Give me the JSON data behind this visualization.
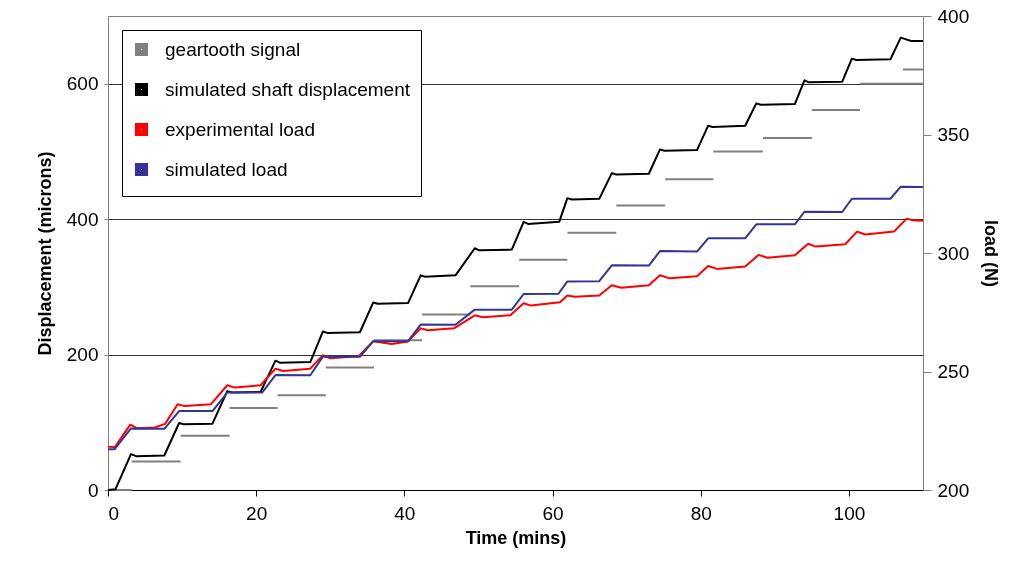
{
  "chart_data": {
    "type": "line",
    "xlabel": "Time (mins)",
    "ylabel": "Displacement (microns)",
    "y2label": "load (N)",
    "xlim": [
      0,
      110
    ],
    "xticks": [
      0,
      20,
      40,
      60,
      80,
      100
    ],
    "ylim": [
      0,
      700
    ],
    "yticks": [
      0,
      200,
      400,
      600
    ],
    "y2lim": [
      200,
      400
    ],
    "y2ticks": [
      200,
      250,
      300,
      350,
      400
    ],
    "grid": "y",
    "legend": "top left",
    "series": [
      {
        "name": "geartooth signal",
        "color": "#808080",
        "x": [
          0,
          3.2,
          null,
          3.2,
          9.8,
          null,
          9.8,
          16.4,
          null,
          16.4,
          22.9,
          null,
          22.9,
          29.4,
          null,
          29.4,
          35.9,
          null,
          35.9,
          42.4,
          null,
          42.4,
          48.9,
          null,
          48.9,
          55.5,
          null,
          55.5,
          62.0,
          null,
          62.0,
          68.6,
          null,
          68.6,
          75.2,
          null,
          75.2,
          81.7,
          null,
          81.7,
          88.4,
          null,
          88.4,
          95.0,
          null,
          95.0,
          101.5,
          null,
          101.5,
          110,
          null,
          107.3,
          110
        ],
        "values": [
          0,
          0,
          null,
          42,
          42,
          null,
          80,
          80,
          null,
          121,
          121,
          null,
          140,
          140,
          null,
          181,
          181,
          null,
          221,
          221,
          null,
          259,
          259,
          null,
          301,
          301,
          null,
          340,
          340,
          null,
          380,
          380,
          null,
          420,
          420,
          null,
          459,
          459,
          null,
          500,
          500,
          null,
          520,
          520,
          null,
          561,
          561,
          null,
          600,
          600,
          null,
          621,
          621
        ]
      },
      {
        "name": "simulated shaft displacement",
        "color": "#000000",
        "x": [
          0,
          1,
          3.1,
          3.8,
          7.6,
          9.6,
          10.2,
          14.1,
          16.1,
          16.7,
          20.6,
          22.6,
          23.2,
          27.3,
          29.0,
          29.6,
          34.0,
          35.8,
          36.4,
          40.5,
          42.2,
          42.8,
          46.9,
          49.5,
          50.1,
          54.5,
          56.1,
          56.7,
          60.9,
          62.0,
          62.6,
          66.3,
          68.0,
          68.6,
          73.0,
          74.5,
          75.1,
          79.5,
          81.0,
          81.6,
          86.0,
          87.5,
          88.1,
          92.7,
          94.0,
          94.6,
          99.1,
          100.4,
          101.0,
          105.6,
          107.0,
          108.4,
          110
        ],
        "values": [
          0,
          1,
          53,
          50,
          51,
          99,
          97,
          98,
          146,
          144,
          145,
          191,
          188,
          189,
          234,
          232,
          233,
          277,
          275,
          276,
          317,
          315,
          317,
          357,
          354,
          355,
          396,
          393,
          396,
          431,
          429,
          430,
          468,
          466,
          467,
          503,
          501,
          502,
          538,
          536,
          538,
          571,
          569,
          570,
          605,
          602,
          603,
          637,
          635,
          636,
          668,
          663,
          663
        ]
      },
      {
        "name": "experimental load",
        "color": "#ff0000",
        "axis": "y2",
        "x": [
          0,
          0.9,
          3.0,
          3.9,
          6.3,
          7.7,
          9.4,
          10.4,
          13.9,
          16.1,
          17.1,
          20.6,
          22.6,
          23.6,
          27.3,
          29.0,
          30.0,
          33.8,
          35.8,
          38.3,
          40.5,
          42.2,
          43.2,
          46.7,
          49.5,
          50.6,
          54.3,
          56.1,
          57.1,
          61.0,
          62.0,
          63.0,
          66.3,
          68.0,
          69.3,
          73.0,
          74.5,
          75.8,
          79.5,
          81.0,
          82.2,
          86.0,
          87.8,
          89.0,
          92.7,
          94.5,
          95.5,
          99.5,
          101.1,
          102.2,
          106.1,
          107.8,
          108.6,
          110
        ],
        "values": [
          218.3,
          218.0,
          227.6,
          226.1,
          226.4,
          227.9,
          236.2,
          235.4,
          236.2,
          244.2,
          243.2,
          244.2,
          251.2,
          250.2,
          251.2,
          256.9,
          255.6,
          256.4,
          262.8,
          261.6,
          262.7,
          268.2,
          267.4,
          268.2,
          273.7,
          272.9,
          273.7,
          278.8,
          277.8,
          279.2,
          282.1,
          281.5,
          282.1,
          286.4,
          285.3,
          286.4,
          290.6,
          289.3,
          290.2,
          294.5,
          293.3,
          294.3,
          299.2,
          298.0,
          299.0,
          303.9,
          302.7,
          303.7,
          309.0,
          307.8,
          309.1,
          314.5,
          313.8,
          313.6
        ]
      },
      {
        "name": "simulated load",
        "color": "#333399",
        "axis": "y2",
        "x": [
          0,
          0.9,
          3.1,
          7.6,
          9.6,
          14.1,
          16.1,
          20.8,
          22.6,
          27.3,
          29.0,
          34.0,
          35.8,
          40.5,
          42.2,
          46.9,
          49.5,
          54.5,
          56.1,
          60.8,
          62.0,
          66.3,
          68.0,
          73.0,
          74.5,
          79.5,
          81.0,
          86.0,
          87.5,
          92.7,
          94.0,
          99.1,
          100.4,
          105.6,
          107.0,
          110
        ],
        "values": [
          217.2,
          217.2,
          226.0,
          225.8,
          233.3,
          233.3,
          241.1,
          241.1,
          248.5,
          248.4,
          256.3,
          256.2,
          262.8,
          262.8,
          269.8,
          269.7,
          276.1,
          276.1,
          282.7,
          282.8,
          288.0,
          288.1,
          294.8,
          294.7,
          300.8,
          300.6,
          306.2,
          306.2,
          312.1,
          312.1,
          317.4,
          317.3,
          322.9,
          322.9,
          328.0,
          327.8
        ]
      }
    ]
  }
}
